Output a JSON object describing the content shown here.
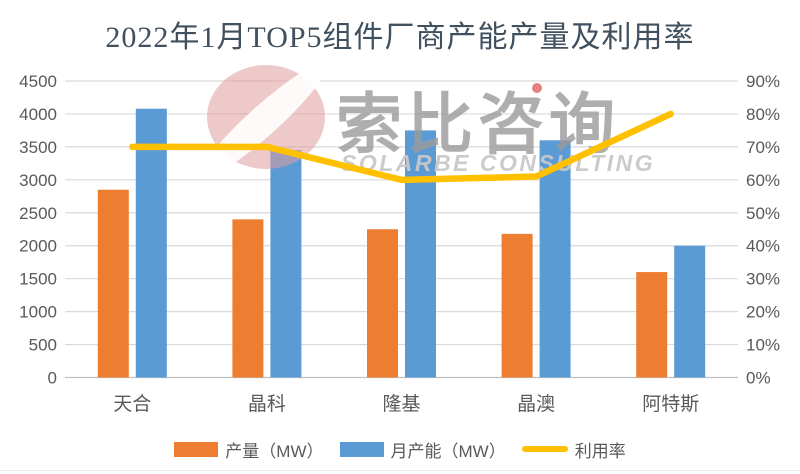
{
  "title": "2022年1月TOP5组件厂商产能产量及利用率",
  "watermark": {
    "logo": "solarbe-swirl-logo",
    "cn": "索比咨询",
    "en": "SOLARBE CONSULTING"
  },
  "colors": {
    "production": "#ED7D31",
    "capacity": "#5B9BD5",
    "utilization": "#FFC000",
    "grid": "#D9D9D9",
    "axis_line": "#BFBFBF",
    "axis_text": "#595959",
    "title_text": "#41505E",
    "watermark_cn": "#9B9B9B",
    "watermark_en": "#C9C9C9",
    "logo_pink": "#E09C9C",
    "logo_dot": "#DF6B6B"
  },
  "chart_data": {
    "type": "bar",
    "subtype": "grouped-bars-with-line-dual-axis",
    "title": "2022年1月TOP5组件厂商产能产量及利用率",
    "categories": [
      "天合",
      "晶科",
      "隆基",
      "晶澳",
      "阿特斯"
    ],
    "series": [
      {
        "name": "产量（MW）",
        "type": "bar",
        "axis": "left",
        "values": [
          2850,
          2400,
          2250,
          2180,
          1600
        ]
      },
      {
        "name": "月产能（MW）",
        "type": "bar",
        "axis": "left",
        "values": [
          4080,
          3450,
          3750,
          3600,
          2000
        ]
      },
      {
        "name": "利用率",
        "type": "line",
        "axis": "right",
        "unit": "%",
        "values": [
          70,
          70,
          60,
          61,
          80
        ]
      }
    ],
    "left_axis": {
      "min": 0,
      "max": 4500,
      "step": 500,
      "ticks": [
        "0",
        "500",
        "1000",
        "1500",
        "2000",
        "2500",
        "3000",
        "3500",
        "4000",
        "4500"
      ]
    },
    "right_axis": {
      "min": 0,
      "max": 90,
      "step": 10,
      "unit": "%",
      "ticks": [
        "0%",
        "10%",
        "20%",
        "30%",
        "40%",
        "50%",
        "60%",
        "70%",
        "80%",
        "90%"
      ]
    },
    "grid": true,
    "legend_position": "bottom"
  }
}
